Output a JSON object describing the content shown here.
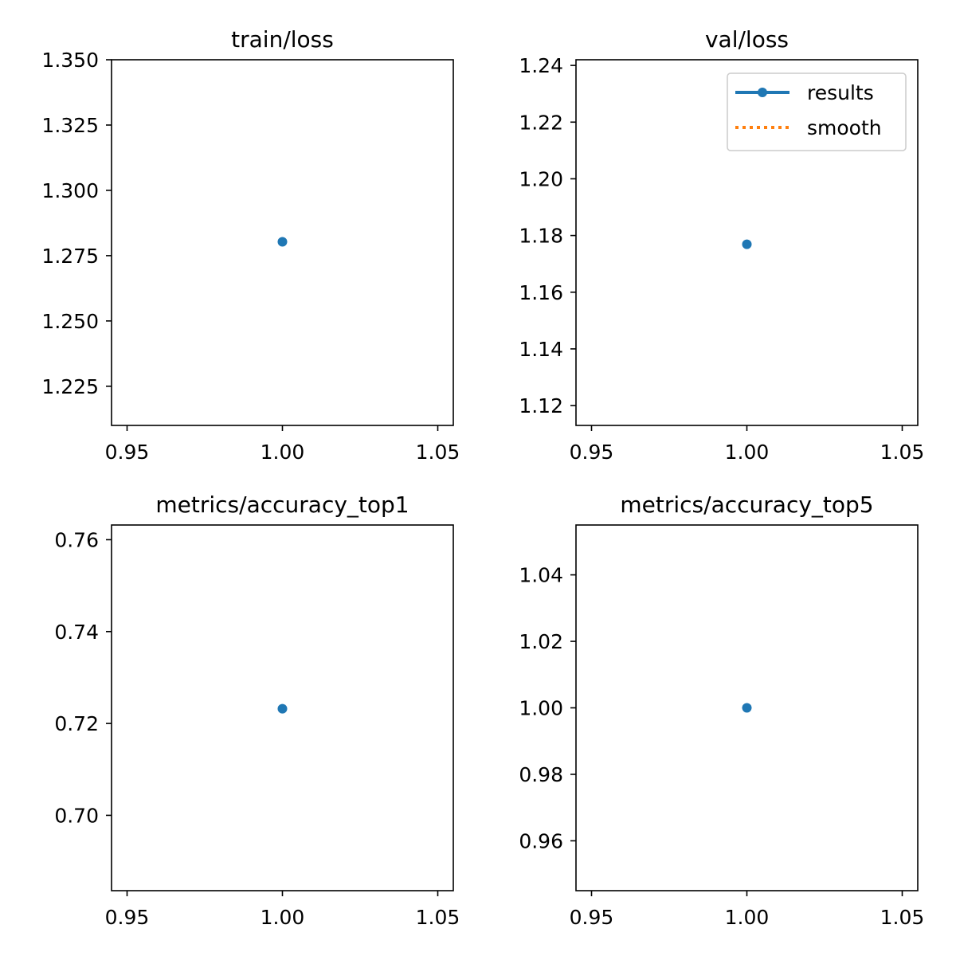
{
  "chart_data": [
    {
      "type": "scatter",
      "title": "train/loss",
      "xlabel": "",
      "ylabel": "",
      "xlim": [
        0.945,
        1.055
      ],
      "ylim": [
        1.21,
        1.35
      ],
      "xticks": [
        0.95,
        1.0,
        1.05
      ],
      "xtick_labels": [
        "0.95",
        "1.00",
        "1.05"
      ],
      "yticks": [
        1.225,
        1.25,
        1.275,
        1.3,
        1.325,
        1.35
      ],
      "ytick_labels": [
        "1.225",
        "1.250",
        "1.275",
        "1.300",
        "1.325",
        "1.350"
      ],
      "series": [
        {
          "x": [
            1.0
          ],
          "y": [
            1.2803
          ],
          "color": "#1f77b4"
        }
      ],
      "grid": false,
      "legend": null
    },
    {
      "type": "scatter",
      "title": "val/loss",
      "xlabel": "",
      "ylabel": "",
      "xlim": [
        0.945,
        1.055
      ],
      "ylim": [
        1.113,
        1.242
      ],
      "xticks": [
        0.95,
        1.0,
        1.05
      ],
      "xtick_labels": [
        "0.95",
        "1.00",
        "1.05"
      ],
      "yticks": [
        1.12,
        1.14,
        1.16,
        1.18,
        1.2,
        1.22,
        1.24
      ],
      "ytick_labels": [
        "1.12",
        "1.14",
        "1.16",
        "1.18",
        "1.20",
        "1.22",
        "1.24"
      ],
      "series": [
        {
          "name": "results",
          "x": [
            1.0
          ],
          "y": [
            1.1769
          ],
          "color": "#1f77b4",
          "style": "line-marker"
        },
        {
          "name": "smooth",
          "x": [],
          "y": [],
          "color": "#ff7f0e",
          "style": "dotted"
        }
      ],
      "grid": false,
      "legend": "upper right"
    },
    {
      "type": "scatter",
      "title": "metrics/accuracy_top1",
      "xlabel": "",
      "ylabel": "",
      "xlim": [
        0.945,
        1.055
      ],
      "ylim": [
        0.6836,
        0.7632
      ],
      "xticks": [
        0.95,
        1.0,
        1.05
      ],
      "xtick_labels": [
        "0.95",
        "1.00",
        "1.05"
      ],
      "yticks": [
        0.7,
        0.72,
        0.74,
        0.76
      ],
      "ytick_labels": [
        "0.70",
        "0.72",
        "0.74",
        "0.76"
      ],
      "series": [
        {
          "x": [
            1.0
          ],
          "y": [
            0.7232
          ],
          "color": "#1f77b4"
        }
      ],
      "grid": false,
      "legend": null
    },
    {
      "type": "scatter",
      "title": "metrics/accuracy_top5",
      "xlabel": "",
      "ylabel": "",
      "xlim": [
        0.945,
        1.055
      ],
      "ylim": [
        0.945,
        1.055
      ],
      "xticks": [
        0.95,
        1.0,
        1.05
      ],
      "xtick_labels": [
        "0.95",
        "1.00",
        "1.05"
      ],
      "yticks": [
        0.96,
        0.98,
        1.0,
        1.02,
        1.04
      ],
      "ytick_labels": [
        "0.96",
        "0.98",
        "1.00",
        "1.02",
        "1.04"
      ],
      "series": [
        {
          "x": [
            1.0
          ],
          "y": [
            1.0
          ],
          "color": "#1f77b4"
        }
      ],
      "grid": false,
      "legend": null
    }
  ]
}
